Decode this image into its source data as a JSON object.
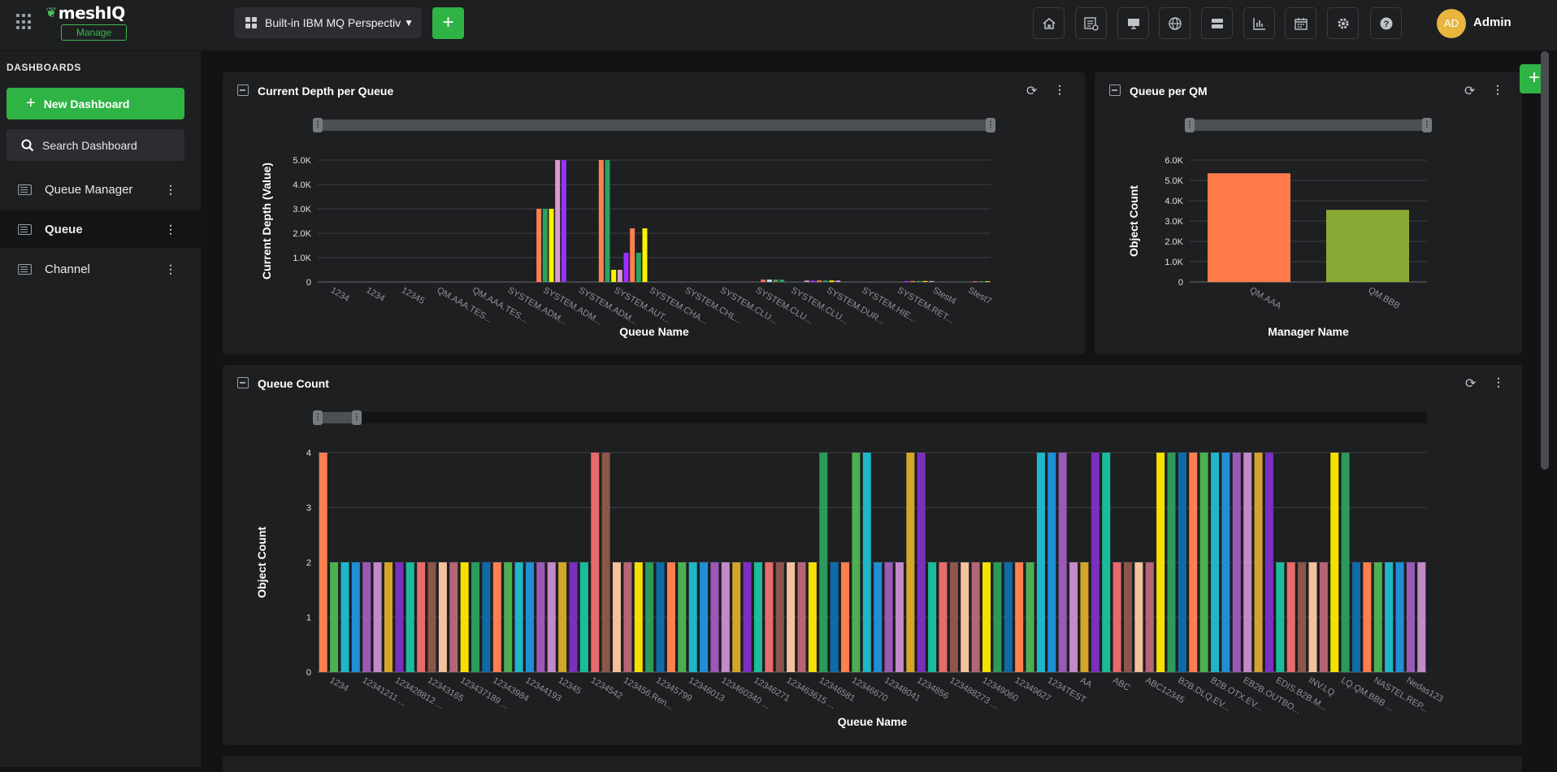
{
  "header": {
    "logo_text": "meshIQ",
    "logo_badge": "Manage",
    "perspective_label": "Built-in IBM MQ Perspectiv",
    "add_label": "+",
    "user_initials": "AD",
    "user_name": "Admin",
    "tools": [
      "home-icon",
      "report-icon",
      "monitor-icon",
      "globe-icon",
      "server-icon",
      "chart-icon",
      "calendar-icon",
      "gear-icon",
      "help-icon"
    ]
  },
  "sidebar": {
    "title": "DASHBOARDS",
    "new_dashboard_label": "New Dashboard",
    "search_placeholder": "Search Dashboard",
    "items": [
      {
        "label": "Queue Manager",
        "active": false
      },
      {
        "label": "Queue",
        "active": true
      },
      {
        "label": "Channel",
        "active": false
      }
    ]
  },
  "panels": {
    "depth": {
      "title": "Current Depth per Queue"
    },
    "qm": {
      "title": "Queue per QM"
    },
    "count": {
      "title": "Queue Count"
    }
  },
  "chart_data": [
    {
      "id": "depth",
      "type": "bar",
      "title": "Current Depth per Queue",
      "xlabel": "Queue Name",
      "ylabel": "Current Depth (Value)",
      "ylim": [
        0,
        5000
      ],
      "yticks": [
        "0",
        "1.0K",
        "2.0K",
        "3.0K",
        "4.0K",
        "5.0K"
      ],
      "xticklabels": [
        "1234",
        "1234",
        "12345",
        "QM.AAA.TES...",
        "QM.AAA.TES...",
        "SYSTEM.ADM...",
        "SYSTEM.ADM...",
        "SYSTEM.ADM...",
        "SYSTEM.AUT...",
        "SYSTEM.CHA...",
        "SYSTEM.CHL...",
        "SYSTEM.CLU...",
        "SYSTEM.CLU...",
        "SYSTEM.CLU...",
        "SYSTEM.DUR...",
        "SYSTEM.HIE...",
        "SYSTEM.RET...",
        "Stest4",
        "Stest7"
      ],
      "values": [
        0,
        0,
        0,
        0,
        0,
        0,
        0,
        0,
        0,
        0,
        0,
        0,
        0,
        0,
        0,
        0,
        0,
        0,
        0,
        0,
        0,
        0,
        0,
        0,
        0,
        0,
        0,
        0,
        0,
        0,
        0,
        0,
        0,
        0,
        0,
        3000,
        3000,
        3000,
        5000,
        5000,
        0,
        0,
        0,
        0,
        0,
        5000,
        5000,
        500,
        500,
        1200,
        2200,
        1200,
        2200,
        0,
        0,
        0,
        0,
        0,
        0,
        0,
        0,
        0,
        0,
        0,
        0,
        0,
        0,
        0,
        0,
        0,
        0,
        100,
        100,
        100,
        100,
        0,
        0,
        0,
        60,
        60,
        60,
        60,
        60,
        60,
        0,
        0,
        0,
        0,
        0,
        0,
        0,
        0,
        0,
        0,
        40,
        40,
        40,
        40,
        40,
        0,
        0,
        0,
        0,
        0,
        0,
        30,
        30,
        30
      ],
      "colors": [
        "#ff7f50",
        "#2ca25f",
        "#fff200",
        "#da9bd1",
        "#9b30ff",
        "#ff7f50",
        "#2ca25f",
        "#fff200",
        "#da9bd1",
        "#9b30ff",
        "#8c564b",
        "#ef6c4c",
        "#b8d9f0",
        "#6a8f3e",
        "#1a9e77"
      ]
    },
    {
      "id": "qm",
      "type": "bar",
      "title": "Queue per QM",
      "xlabel": "Manager Name",
      "ylabel": "Object Count",
      "ylim": [
        0,
        6000
      ],
      "yticks": [
        "0",
        "1.0K",
        "2.0K",
        "3.0K",
        "4.0K",
        "5.0K",
        "6.0K"
      ],
      "categories": [
        "QM.AAA",
        "QM.BBB"
      ],
      "values": [
        5350,
        3550
      ],
      "colors": [
        "#ff7b4a",
        "#8aaa35"
      ]
    },
    {
      "id": "count",
      "type": "bar",
      "title": "Queue Count",
      "xlabel": "Queue Name",
      "ylabel": "Object Count",
      "ylim": [
        0,
        4
      ],
      "yticks": [
        "0",
        "1",
        "2",
        "3",
        "4"
      ],
      "xticklabels": [
        "1234",
        "12341211 ...",
        "123428812 ...",
        "12343165",
        "123437189 ...",
        "12343984",
        "12344193",
        "12345",
        "1234542",
        "123456.Ren...",
        "12345799",
        "12346013",
        "123460340 ...",
        "12346271",
        "123463615 ...",
        "12346581",
        "12346670",
        "12348041",
        "1234856",
        "123488273 ...",
        "12349060",
        "12349627",
        "1234TEST",
        "AA",
        "ABC",
        "ABC12345",
        "B2B.DLQ.EV...",
        "B2B.OTX.EV...",
        "EB2B.OUTBO...",
        "EDIS.B2B.M...",
        "INV.LQ",
        "LQ.QM.BBB ...",
        "NASTEL.REP...",
        "Nedas123"
      ],
      "values": [
        4,
        2,
        2,
        2,
        2,
        2,
        2,
        2,
        2,
        2,
        2,
        2,
        2,
        2,
        2,
        2,
        2,
        2,
        2,
        2,
        2,
        2,
        2,
        2,
        2,
        4,
        4,
        2,
        2,
        2,
        2,
        2,
        2,
        2,
        2,
        2,
        2,
        2,
        2,
        2,
        2,
        2,
        2,
        2,
        2,
        2,
        4,
        2,
        2,
        4,
        4,
        2,
        2,
        2,
        4,
        4,
        2,
        2,
        2,
        2,
        2,
        2,
        2,
        2,
        2,
        2,
        4,
        4,
        4,
        2,
        2,
        4,
        4,
        2,
        2,
        2,
        2,
        4,
        4,
        4,
        4,
        4,
        4,
        4,
        4,
        4,
        4,
        4,
        2,
        2,
        2,
        2,
        2,
        4,
        4,
        2,
        2,
        2,
        2,
        2,
        2,
        2
      ],
      "colors": [
        "#ff7f50",
        "#4caf50",
        "#1fb6c8",
        "#1f8fd6",
        "#9b59b6",
        "#c28ac8",
        "#d4a52a",
        "#7b2fbe",
        "#1abc9c",
        "#e66b6b",
        "#8c564b",
        "#f4c19d",
        "#b56576",
        "#f5e000",
        "#2c9a5a",
        "#0f6ba8"
      ]
    }
  ]
}
